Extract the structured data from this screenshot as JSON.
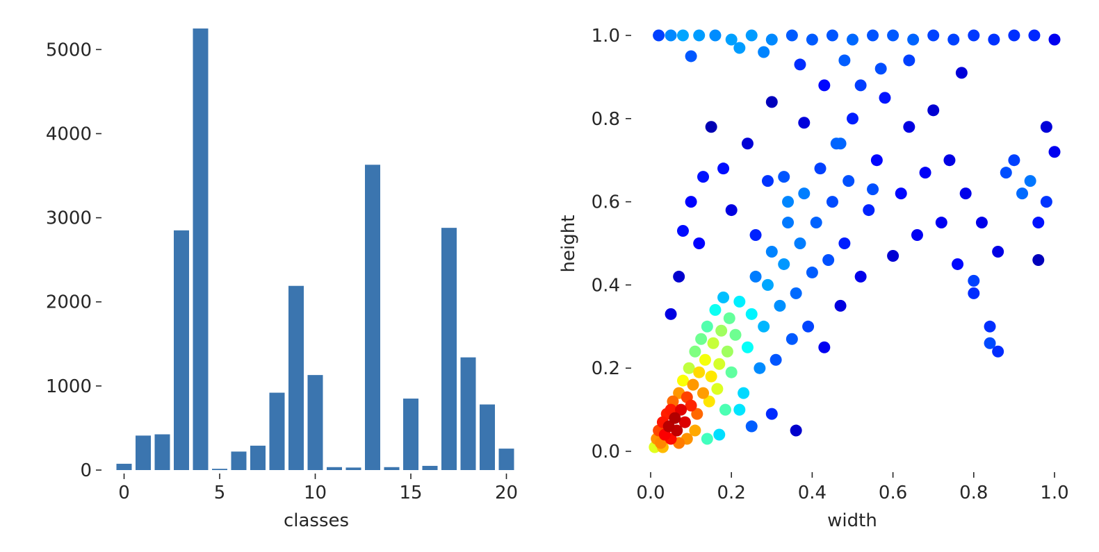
{
  "colors": {
    "bar": "#3b75af",
    "text": "#262626",
    "scatter_colormap": "jet"
  },
  "chart_data": [
    {
      "type": "bar",
      "xlabel": "classes",
      "ylabel": "",
      "xlim": [
        -0.6,
        20.6
      ],
      "ylim": [
        0,
        5300
      ],
      "xticks": [
        0,
        5,
        10,
        15,
        20
      ],
      "yticks": [
        0,
        1000,
        2000,
        3000,
        4000,
        5000
      ],
      "x": [
        0,
        1,
        2,
        3,
        4,
        5,
        6,
        7,
        8,
        9,
        10,
        11,
        12,
        13,
        14,
        15,
        16,
        17,
        18,
        19,
        20
      ],
      "values": [
        75,
        410,
        425,
        2850,
        5250,
        15,
        220,
        290,
        920,
        2190,
        1130,
        35,
        30,
        3630,
        35,
        850,
        50,
        2880,
        1340,
        780,
        255
      ],
      "grid": false,
      "legend": "none"
    },
    {
      "type": "scatter",
      "xlabel": "width",
      "ylabel": "height",
      "xlim": [
        0,
        1
      ],
      "ylim": [
        0,
        1
      ],
      "xticks": [
        0.0,
        0.2,
        0.4,
        0.6,
        0.8,
        1.0
      ],
      "yticks": [
        0.0,
        0.2,
        0.4,
        0.6,
        0.8,
        1.0
      ],
      "xtick_labels": [
        "0.0",
        "0.2",
        "0.4",
        "0.6",
        "0.8",
        "1.0"
      ],
      "ytick_labels": [
        "0.0",
        "0.2",
        "0.4",
        "0.6",
        "0.8",
        "1.0"
      ],
      "color_encoding": "point density (jet colormap)",
      "grid": false,
      "legend": "none",
      "points": [
        [
          0.01,
          0.01
        ],
        [
          0.015,
          0.03
        ],
        [
          0.02,
          0.05
        ],
        [
          0.025,
          0.02
        ],
        [
          0.03,
          0.07
        ],
        [
          0.035,
          0.04
        ],
        [
          0.04,
          0.09
        ],
        [
          0.045,
          0.06
        ],
        [
          0.05,
          0.03
        ],
        [
          0.05,
          0.1
        ],
        [
          0.055,
          0.12
        ],
        [
          0.06,
          0.08
        ],
        [
          0.065,
          0.05
        ],
        [
          0.07,
          0.14
        ],
        [
          0.075,
          0.1
        ],
        [
          0.08,
          0.17
        ],
        [
          0.085,
          0.07
        ],
        [
          0.09,
          0.13
        ],
        [
          0.095,
          0.2
        ],
        [
          0.1,
          0.11
        ],
        [
          0.105,
          0.16
        ],
        [
          0.11,
          0.24
        ],
        [
          0.115,
          0.09
        ],
        [
          0.12,
          0.19
        ],
        [
          0.125,
          0.27
        ],
        [
          0.13,
          0.14
        ],
        [
          0.135,
          0.22
        ],
        [
          0.14,
          0.3
        ],
        [
          0.145,
          0.12
        ],
        [
          0.15,
          0.18
        ],
        [
          0.155,
          0.26
        ],
        [
          0.16,
          0.34
        ],
        [
          0.165,
          0.15
        ],
        [
          0.17,
          0.21
        ],
        [
          0.175,
          0.29
        ],
        [
          0.18,
          0.37
        ],
        [
          0.185,
          0.1
        ],
        [
          0.19,
          0.24
        ],
        [
          0.195,
          0.32
        ],
        [
          0.2,
          0.19
        ],
        [
          0.21,
          0.28
        ],
        [
          0.22,
          0.36
        ],
        [
          0.23,
          0.14
        ],
        [
          0.24,
          0.25
        ],
        [
          0.25,
          0.33
        ],
        [
          0.26,
          0.42
        ],
        [
          0.27,
          0.2
        ],
        [
          0.28,
          0.3
        ],
        [
          0.29,
          0.4
        ],
        [
          0.3,
          0.48
        ],
        [
          0.31,
          0.22
        ],
        [
          0.32,
          0.35
        ],
        [
          0.33,
          0.45
        ],
        [
          0.34,
          0.55
        ],
        [
          0.35,
          0.27
        ],
        [
          0.36,
          0.38
        ],
        [
          0.37,
          0.5
        ],
        [
          0.38,
          0.62
        ],
        [
          0.39,
          0.3
        ],
        [
          0.4,
          0.43
        ],
        [
          0.41,
          0.55
        ],
        [
          0.42,
          0.68
        ],
        [
          0.43,
          0.25
        ],
        [
          0.44,
          0.46
        ],
        [
          0.45,
          0.6
        ],
        [
          0.46,
          0.74
        ],
        [
          0.47,
          0.35
        ],
        [
          0.48,
          0.5
        ],
        [
          0.49,
          0.65
        ],
        [
          0.5,
          0.8
        ],
        [
          0.52,
          0.42
        ],
        [
          0.54,
          0.58
        ],
        [
          0.56,
          0.7
        ],
        [
          0.58,
          0.85
        ],
        [
          0.6,
          0.47
        ],
        [
          0.62,
          0.62
        ],
        [
          0.64,
          0.78
        ],
        [
          0.66,
          0.52
        ],
        [
          0.68,
          0.67
        ],
        [
          0.7,
          0.82
        ],
        [
          0.72,
          0.55
        ],
        [
          0.74,
          0.7
        ],
        [
          0.76,
          0.45
        ],
        [
          0.78,
          0.62
        ],
        [
          0.8,
          0.38
        ],
        [
          0.82,
          0.55
        ],
        [
          0.84,
          0.3
        ],
        [
          0.86,
          0.48
        ],
        [
          0.88,
          0.67
        ],
        [
          0.9,
          0.7
        ],
        [
          0.92,
          0.62
        ],
        [
          0.94,
          0.65
        ],
        [
          0.96,
          0.55
        ],
        [
          0.98,
          0.78
        ],
        [
          1.0,
          0.72
        ],
        [
          0.98,
          0.6
        ],
        [
          0.96,
          0.46
        ],
        [
          0.86,
          0.24
        ],
        [
          0.84,
          0.26
        ],
        [
          0.8,
          0.41
        ],
        [
          0.02,
          1.0
        ],
        [
          0.05,
          1.0
        ],
        [
          0.08,
          1.0
        ],
        [
          0.12,
          1.0
        ],
        [
          0.16,
          1.0
        ],
        [
          0.2,
          0.99
        ],
        [
          0.25,
          1.0
        ],
        [
          0.3,
          0.99
        ],
        [
          0.35,
          1.0
        ],
        [
          0.4,
          0.99
        ],
        [
          0.45,
          1.0
        ],
        [
          0.5,
          0.99
        ],
        [
          0.55,
          1.0
        ],
        [
          0.6,
          1.0
        ],
        [
          0.65,
          0.99
        ],
        [
          0.7,
          1.0
        ],
        [
          0.75,
          0.99
        ],
        [
          0.8,
          1.0
        ],
        [
          0.85,
          0.99
        ],
        [
          0.9,
          1.0
        ],
        [
          0.95,
          1.0
        ],
        [
          1.0,
          0.99
        ],
        [
          0.1,
          0.95
        ],
        [
          0.22,
          0.97
        ],
        [
          0.28,
          0.96
        ],
        [
          0.37,
          0.93
        ],
        [
          0.48,
          0.94
        ],
        [
          0.57,
          0.92
        ],
        [
          0.64,
          0.94
        ],
        [
          0.77,
          0.91
        ],
        [
          0.15,
          0.78
        ],
        [
          0.18,
          0.68
        ],
        [
          0.24,
          0.74
        ],
        [
          0.3,
          0.84
        ],
        [
          0.33,
          0.66
        ],
        [
          0.38,
          0.79
        ],
        [
          0.43,
          0.88
        ],
        [
          0.47,
          0.74
        ],
        [
          0.52,
          0.88
        ],
        [
          0.55,
          0.63
        ],
        [
          0.1,
          0.6
        ],
        [
          0.12,
          0.5
        ],
        [
          0.07,
          0.42
        ],
        [
          0.05,
          0.33
        ],
        [
          0.08,
          0.53
        ],
        [
          0.13,
          0.66
        ],
        [
          0.2,
          0.58
        ],
        [
          0.26,
          0.52
        ],
        [
          0.29,
          0.65
        ],
        [
          0.34,
          0.6
        ],
        [
          0.36,
          0.05
        ],
        [
          0.3,
          0.09
        ],
        [
          0.25,
          0.06
        ],
        [
          0.22,
          0.1
        ],
        [
          0.17,
          0.04
        ],
        [
          0.14,
          0.03
        ],
        [
          0.11,
          0.05
        ],
        [
          0.09,
          0.03
        ],
        [
          0.07,
          0.02
        ],
        [
          0.03,
          0.01
        ]
      ]
    }
  ]
}
